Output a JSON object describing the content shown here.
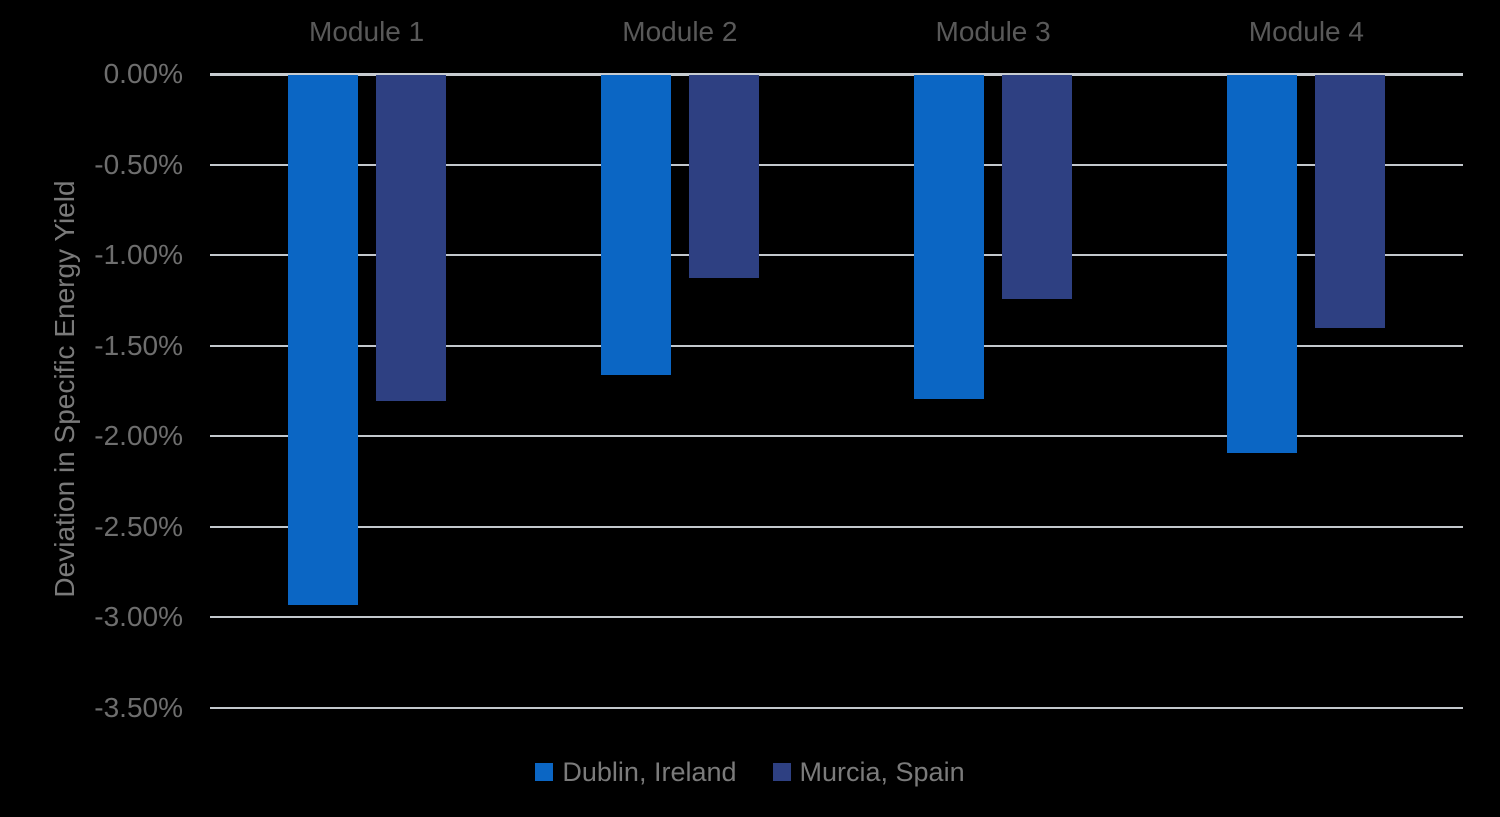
{
  "chart_data": {
    "type": "bar",
    "title": "",
    "categories": [
      "Module 1",
      "Module 2",
      "Module 3",
      "Module 4"
    ],
    "series": [
      {
        "name": "Dublin, Ireland",
        "color": "#0B66C4",
        "values": [
          -2.93,
          -1.66,
          -1.79,
          -2.09
        ]
      },
      {
        "name": "Murcia, Spain",
        "color": "#2E4082",
        "values": [
          -1.8,
          -1.12,
          -1.24,
          -1.4
        ]
      }
    ],
    "xlabel": "",
    "ylabel": "Deviation in Specific Energy Yield",
    "yticks": [
      "0.00%",
      "-0.50%",
      "-1.00%",
      "-1.50%",
      "-2.00%",
      "-2.50%",
      "-3.00%",
      "-3.50%"
    ],
    "ytick_values": [
      0,
      -0.5,
      -1.0,
      -1.5,
      -2.0,
      -2.5,
      -3.0,
      -3.5
    ],
    "ylim": [
      -3.5,
      0
    ],
    "grid": true,
    "legend_position": "bottom",
    "bar_orientation": "vertical-negative"
  },
  "colors": {
    "background": "#000000",
    "gridline": "#C3C8CD",
    "zero_axis": "#C7CCD1",
    "tick_text": "#6E6E6E",
    "category_text": "#595959",
    "axis_title_text": "#7A7A7A",
    "legend_text": "#7B7B7B"
  }
}
